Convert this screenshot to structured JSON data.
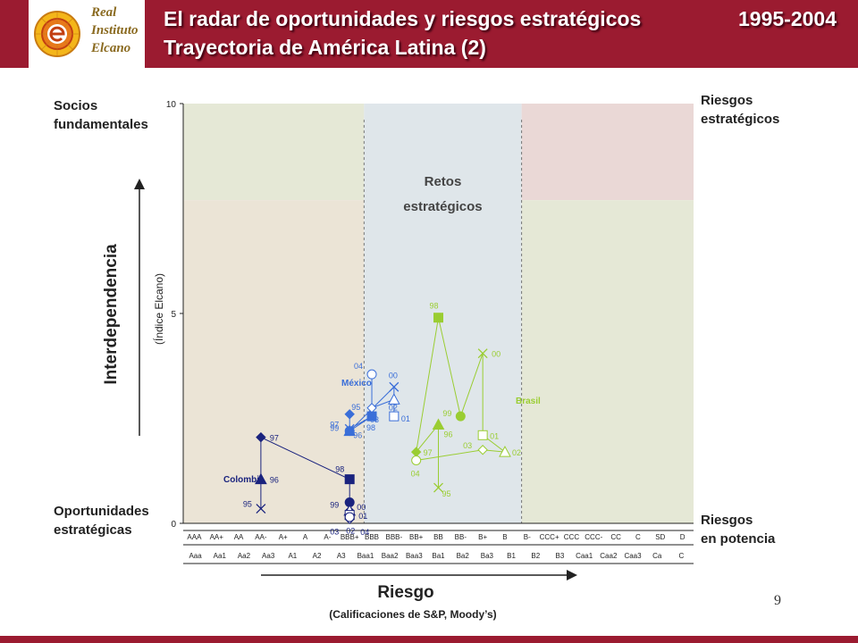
{
  "header": {
    "title_line1": "El radar de oportunidades y riesgos estratégicos",
    "title_line2": "Trayectoria de América Latina (2)",
    "years": "1995-2004",
    "logo_lines": [
      "Real",
      "Instituto",
      "Elcano"
    ]
  },
  "corners": {
    "top_left": [
      "Socios",
      "fundamentales"
    ],
    "top_right": [
      "Riesgos",
      "estratégicos"
    ],
    "bottom_left": [
      "Oportunidades",
      "estratégicas"
    ],
    "bottom_right": [
      "Riesgos",
      "en potencia"
    ]
  },
  "page_number": "9",
  "colors": {
    "header": "#9b1b30",
    "colombia": "#1a237e",
    "mexico": "#3a6ed8",
    "brasil": "#9acd32",
    "zone_green": "#e5e8d6",
    "zone_beige": "#ebe4d6",
    "zone_blue": "#dfe6ea",
    "zone_red": "#ead8d6"
  },
  "chart_data": {
    "type": "scatter",
    "title": "",
    "ylabel": "Interdependencia",
    "ylabel_sub": "(Índice Elcano)",
    "xlabel": "Riesgo",
    "xlabel_sub": "(Calificaciones de S&P, Moody’s)",
    "ylim": [
      0,
      10
    ],
    "yticks": [
      0,
      5,
      10
    ],
    "zone_label": [
      "Retos",
      "estratégicos"
    ],
    "sp_ratings": [
      "AAA",
      "AA+",
      "AA",
      "AA-",
      "A+",
      "A",
      "A-",
      "BBB+",
      "BBB",
      "BBB-",
      "BB+",
      "BB",
      "BB-",
      "B+",
      "B",
      "B-",
      "CCC+",
      "CCC",
      "CCC-",
      "CC",
      "C",
      "SD",
      "D"
    ],
    "moodys_ratings": [
      "Aaa",
      "Aa1",
      "Aa2",
      "Aa3",
      "A1",
      "A2",
      "A3",
      "Baa1",
      "Baa2",
      "Baa3",
      "Ba1",
      "Ba2",
      "Ba3",
      "B1",
      "B2",
      "B3",
      "Caa1",
      "Caa2",
      "Caa3",
      "Ca",
      "C"
    ],
    "series": [
      {
        "name": "Colombia",
        "points": [
          {
            "label": "95",
            "x": "AA-",
            "y": 0.35,
            "marker": "x"
          },
          {
            "label": "96",
            "x": "AA-",
            "y": 1.05,
            "marker": "triangle"
          },
          {
            "label": "97",
            "x": "AA-",
            "y": 2.05,
            "marker": "diamond"
          },
          {
            "label": "98",
            "x": "BBB+",
            "y": 1.05,
            "marker": "square"
          },
          {
            "label": "99",
            "x": "BBB+",
            "y": 0.5,
            "marker": "circle"
          },
          {
            "label": "00",
            "x": "BBB+",
            "y": 0.4,
            "marker": "x"
          },
          {
            "label": "01",
            "x": "BBB+",
            "y": 0.3,
            "marker": "triangle-open"
          },
          {
            "label": "02",
            "x": "BBB+",
            "y": 0.1,
            "marker": "diamond-open"
          },
          {
            "label": "03",
            "x": "BBB+",
            "y": 0.2,
            "marker": "square-open"
          },
          {
            "label": "04",
            "x": "BBB+",
            "y": 0.15,
            "marker": "circle-open"
          }
        ]
      },
      {
        "name": "México",
        "points": [
          {
            "label": "95",
            "x": "BBB+",
            "y": 2.6,
            "marker": "diamond"
          },
          {
            "label": "96",
            "x": "BBB+",
            "y": 2.2,
            "marker": "triangle"
          },
          {
            "label": "97",
            "x": "BBB+",
            "y": 2.25,
            "marker": "x"
          },
          {
            "label": "98",
            "x": "BBB",
            "y": 2.55,
            "marker": "square"
          },
          {
            "label": "99",
            "x": "BBB+",
            "y": 2.2,
            "marker": "circle"
          },
          {
            "label": "00",
            "x": "BBB-",
            "y": 3.25,
            "marker": "x"
          },
          {
            "label": "01",
            "x": "BBB-",
            "y": 2.55,
            "marker": "square-open"
          },
          {
            "label": "02",
            "x": "BBB-",
            "y": 2.95,
            "marker": "triangle-open"
          },
          {
            "label": "03",
            "x": "BBB",
            "y": 2.75,
            "marker": "diamond-open"
          },
          {
            "label": "04",
            "x": "BBB",
            "y": 3.55,
            "marker": "circle-open"
          }
        ]
      },
      {
        "name": "Brasil",
        "points": [
          {
            "label": "96",
            "x": "BB",
            "y": 2.35,
            "marker": "triangle"
          },
          {
            "label": "97",
            "x": "BB+",
            "y": 1.7,
            "marker": "diamond"
          },
          {
            "label": "98",
            "x": "BB",
            "y": 4.9,
            "marker": "square"
          },
          {
            "label": "99",
            "x": "BB-",
            "y": 2.55,
            "marker": "circle"
          },
          {
            "label": "00",
            "x": "B+",
            "y": 4.05,
            "marker": "x"
          },
          {
            "label": "01",
            "x": "B+",
            "y": 2.1,
            "marker": "square-open"
          },
          {
            "label": "02",
            "x": "B",
            "y": 1.7,
            "marker": "triangle-open"
          },
          {
            "label": "03",
            "x": "B+",
            "y": 1.75,
            "marker": "diamond-open"
          },
          {
            "label": "04",
            "x": "BB+",
            "y": 1.5,
            "marker": "circle-open"
          },
          {
            "label": "95",
            "x": "BB",
            "y": 0.85,
            "marker": "x"
          }
        ]
      }
    ]
  }
}
